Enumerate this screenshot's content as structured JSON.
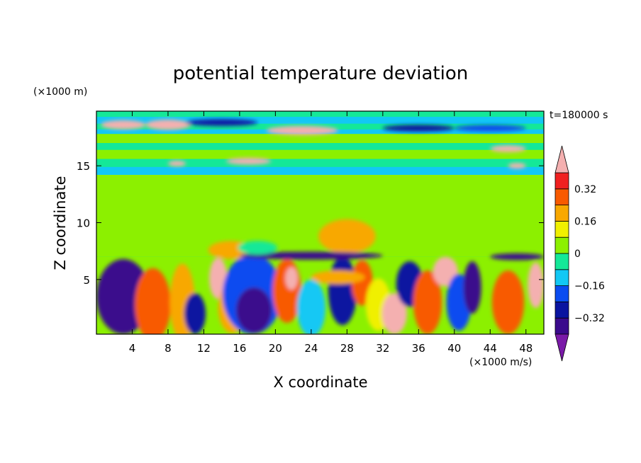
{
  "chart_data": {
    "type": "heatmap",
    "title": "potential temperature deviation",
    "xlabel": "X coordinate",
    "ylabel": "Z coordinate",
    "x_unit": "(×1000 m/s)",
    "y_unit": "(×1000 m)",
    "time_label": "t=180000 s",
    "xlim": [
      0,
      50
    ],
    "ylim": [
      0.2,
      19.8
    ],
    "x_ticks": [
      4,
      8,
      12,
      16,
      20,
      24,
      28,
      32,
      36,
      40,
      44,
      48
    ],
    "y_ticks": [
      5,
      10,
      15
    ],
    "colorbar": {
      "levels": [
        -0.4,
        -0.32,
        -0.24,
        -0.16,
        -0.08,
        0,
        0.08,
        0.16,
        0.24,
        0.32,
        0.4
      ],
      "tick_labels": [
        "0.32",
        "0.16",
        "0",
        "−0.16",
        "−0.32"
      ],
      "tick_values": [
        0.32,
        0.16,
        0,
        -0.16,
        -0.32
      ],
      "colors": [
        "#7a1aa8",
        "#3a0a8c",
        "#0a14a0",
        "#0a4cf0",
        "#12c8f4",
        "#14e898",
        "#8cf000",
        "#f0f000",
        "#f8a800",
        "#f85a00",
        "#f02020",
        "#f4b0b0"
      ],
      "extend": "both"
    },
    "layers": [
      {
        "y0": 0.2,
        "y1": 7.0,
        "value": 0.0
      },
      {
        "y0": 7.0,
        "y1": 14.2,
        "value": 0.04
      },
      {
        "y0": 14.2,
        "y1": 14.9,
        "value": -0.14
      },
      {
        "y0": 14.9,
        "y1": 15.6,
        "value": -0.06
      },
      {
        "y0": 15.6,
        "y1": 16.4,
        "value": 0.04
      },
      {
        "y0": 16.4,
        "y1": 17.0,
        "value": -0.04
      },
      {
        "y0": 17.0,
        "y1": 17.8,
        "value": 0.02
      },
      {
        "y0": 17.8,
        "y1": 18.2,
        "value": -0.12
      },
      {
        "y0": 18.2,
        "y1": 18.7,
        "value": -0.02
      },
      {
        "y0": 18.7,
        "y1": 19.3,
        "value": -0.1
      },
      {
        "y0": 19.3,
        "y1": 19.8,
        "value": -0.02
      }
    ],
    "features": [
      {
        "x": 3,
        "z": 3.5,
        "rx": 3,
        "rz": 3.3,
        "value": -0.4
      },
      {
        "x": 6.3,
        "z": 2.8,
        "rx": 2,
        "rz": 3.2,
        "value": 0.3
      },
      {
        "x": 9.6,
        "z": 3,
        "rx": 1.4,
        "rz": 3.4,
        "value": 0.2
      },
      {
        "x": 11,
        "z": 2,
        "rx": 1.2,
        "rz": 1.8,
        "value": -0.32
      },
      {
        "x": 13.6,
        "z": 5.1,
        "rx": 1,
        "rz": 1.8,
        "value": 0.4
      },
      {
        "x": 15.2,
        "z": 2.5,
        "rx": 1.6,
        "rz": 2.2,
        "value": 0.16
      },
      {
        "x": 17.4,
        "z": 3.7,
        "rx": 3.3,
        "rz": 3.5,
        "value": -0.24
      },
      {
        "x": 17.6,
        "z": 2.3,
        "rx": 2,
        "rz": 2,
        "value": -0.4
      },
      {
        "x": 21.3,
        "z": 4,
        "rx": 1.6,
        "rz": 2.8,
        "value": 0.3
      },
      {
        "x": 21.8,
        "z": 5.1,
        "rx": 0.7,
        "rz": 1,
        "value": 0.4
      },
      {
        "x": 24,
        "z": 2.5,
        "rx": 1.6,
        "rz": 2.5,
        "value": -0.12
      },
      {
        "x": 27.5,
        "z": 4,
        "rx": 1.6,
        "rz": 3,
        "value": -0.32
      },
      {
        "x": 29.7,
        "z": 4.7,
        "rx": 1.2,
        "rz": 2,
        "value": 0.3
      },
      {
        "x": 31.5,
        "z": 2.8,
        "rx": 1.4,
        "rz": 2.3,
        "value": 0.1
      },
      {
        "x": 33.3,
        "z": 2,
        "rx": 1.4,
        "rz": 1.8,
        "value": 0.4
      },
      {
        "x": 35,
        "z": 4.6,
        "rx": 1.5,
        "rz": 2,
        "value": -0.32
      },
      {
        "x": 37,
        "z": 3,
        "rx": 1.6,
        "rz": 2.8,
        "value": 0.3
      },
      {
        "x": 39,
        "z": 5.7,
        "rx": 1.4,
        "rz": 1.3,
        "value": 0.4
      },
      {
        "x": 40.5,
        "z": 3,
        "rx": 1.4,
        "rz": 2.5,
        "value": -0.2
      },
      {
        "x": 42,
        "z": 4.3,
        "rx": 1,
        "rz": 2.3,
        "value": -0.35
      },
      {
        "x": 46,
        "z": 3,
        "rx": 1.8,
        "rz": 2.8,
        "value": 0.3
      },
      {
        "x": 49.1,
        "z": 4.5,
        "rx": 0.9,
        "rz": 2,
        "value": 0.4
      },
      {
        "x": 28,
        "z": 8.8,
        "rx": 3.2,
        "rz": 1.5,
        "value": 0.18
      },
      {
        "x": 15,
        "z": 7.6,
        "rx": 2.5,
        "rz": 0.8,
        "value": 0.18
      },
      {
        "x": 27,
        "z": 5.2,
        "rx": 3,
        "rz": 0.6,
        "value": 0.22
      },
      {
        "x": 24,
        "z": 7.1,
        "rx": 8,
        "rz": 0.35,
        "value": -0.38
      },
      {
        "x": 47,
        "z": 7.0,
        "rx": 3,
        "rz": 0.3,
        "value": -0.38
      },
      {
        "x": 18,
        "z": 7.8,
        "rx": 2.2,
        "rz": 0.6,
        "value": -0.08
      },
      {
        "x": 3,
        "z": 18.6,
        "rx": 2.5,
        "rz": 0.4,
        "value": 0.4
      },
      {
        "x": 8,
        "z": 18.6,
        "rx": 2.5,
        "rz": 0.45,
        "value": 0.4
      },
      {
        "x": 23,
        "z": 18.1,
        "rx": 4,
        "rz": 0.4,
        "value": 0.4
      },
      {
        "x": 17,
        "z": 15.4,
        "rx": 2.5,
        "rz": 0.3,
        "value": 0.4
      },
      {
        "x": 9,
        "z": 15.2,
        "rx": 1,
        "rz": 0.25,
        "value": 0.4
      },
      {
        "x": 46,
        "z": 16.5,
        "rx": 2,
        "rz": 0.3,
        "value": 0.4
      },
      {
        "x": 47,
        "z": 15,
        "rx": 1,
        "rz": 0.25,
        "value": 0.4
      },
      {
        "x": 36,
        "z": 18.3,
        "rx": 4,
        "rz": 0.3,
        "value": -0.32
      },
      {
        "x": 14,
        "z": 18.8,
        "rx": 4,
        "rz": 0.3,
        "value": -0.3
      },
      {
        "x": 44,
        "z": 18.3,
        "rx": 4,
        "rz": 0.3,
        "value": -0.24
      }
    ]
  }
}
